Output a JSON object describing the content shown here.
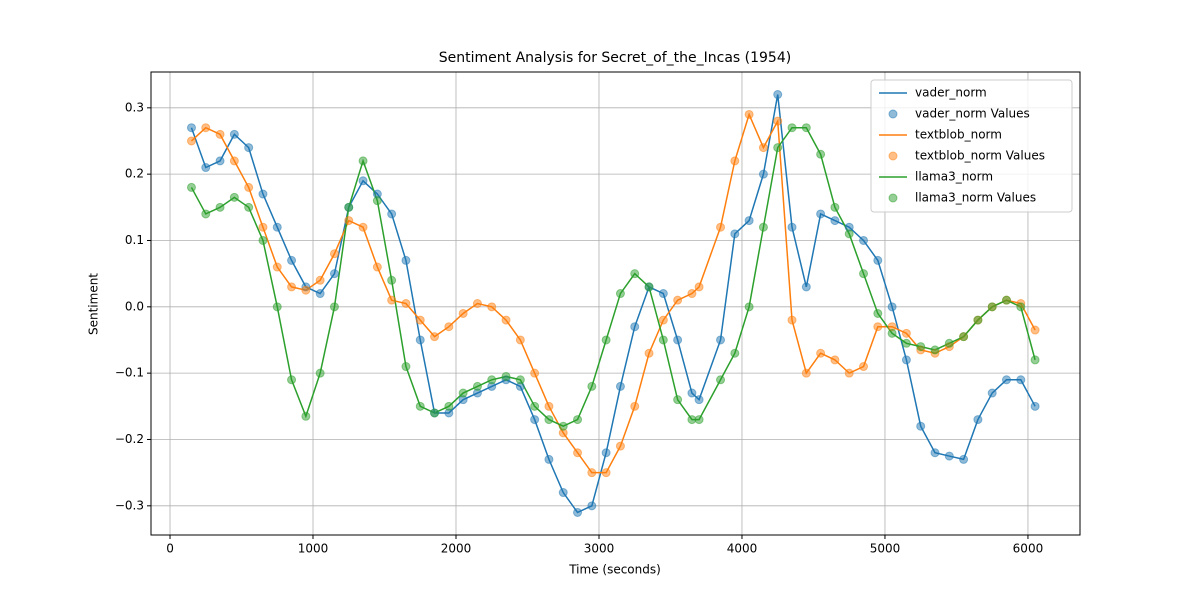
{
  "chart_data": {
    "type": "line",
    "title": "Sentiment Analysis for Secret_of_the_Incas (1954)",
    "x_label": "Time (seconds)",
    "y_label": "Sentiment",
    "xlim": [
      -133,
      6364
    ],
    "ylim": [
      -0.344,
      0.354
    ],
    "xticks": [
      0,
      1000,
      2000,
      3000,
      4000,
      5000,
      6000
    ],
    "yticks": [
      {
        "value": -0.3,
        "label": "−0.3"
      },
      {
        "value": -0.2,
        "label": "−0.2"
      },
      {
        "value": -0.1,
        "label": "−0.1"
      },
      {
        "value": 0,
        "label": "0.0"
      },
      0.1,
      0.2,
      0.3
    ],
    "grid": true,
    "legend": "upper right",
    "x": [
      150,
      250,
      350,
      450,
      550,
      650,
      750,
      850,
      950,
      1050,
      1150,
      1250,
      1350,
      1450,
      1550,
      1650,
      1750,
      1850,
      1950,
      2050,
      2150,
      2250,
      2350,
      2450,
      2550,
      2650,
      2750,
      2850,
      2950,
      3050,
      3150,
      3250,
      3350,
      3450,
      3550,
      3650,
      3700,
      3850,
      3950,
      4050,
      4150,
      4250,
      4350,
      4450,
      4550,
      4650,
      4750,
      4850,
      4950,
      5050,
      5150,
      5250,
      5350,
      5450,
      5550,
      5650,
      5750,
      5850,
      5950,
      6050
    ],
    "series": [
      {
        "name": "vader_norm",
        "points_name": "vader_norm Values",
        "color": "#1f77b4",
        "values": [
          0.27,
          0.21,
          0.22,
          0.26,
          0.24,
          0.17,
          0.12,
          0.07,
          0.03,
          0.02,
          0.05,
          0.15,
          0.19,
          0.17,
          0.14,
          0.07,
          -0.05,
          -0.16,
          -0.16,
          -0.14,
          -0.13,
          -0.12,
          -0.11,
          -0.12,
          -0.17,
          -0.23,
          -0.28,
          -0.31,
          -0.3,
          -0.22,
          -0.12,
          -0.03,
          0.03,
          0.02,
          -0.05,
          -0.13,
          -0.14,
          -0.05,
          0.11,
          0.13,
          0.2,
          0.32,
          0.12,
          0.03,
          0.14,
          0.13,
          0.12,
          0.1,
          0.07,
          0.0,
          -0.08,
          -0.18,
          -0.22,
          -0.225,
          -0.23,
          -0.17,
          -0.13,
          -0.11,
          -0.11,
          -0.15
        ]
      },
      {
        "name": "textblob_norm",
        "points_name": "textblob_norm Values",
        "color": "#ff7f0e",
        "values": [
          0.25,
          0.27,
          0.26,
          0.22,
          0.18,
          0.12,
          0.06,
          0.03,
          0.025,
          0.04,
          0.08,
          0.13,
          0.12,
          0.06,
          0.01,
          0.005,
          -0.02,
          -0.045,
          -0.03,
          -0.01,
          0.005,
          0.0,
          -0.02,
          -0.05,
          -0.1,
          -0.15,
          -0.19,
          -0.22,
          -0.25,
          -0.25,
          -0.21,
          -0.15,
          -0.07,
          -0.02,
          0.01,
          0.02,
          0.03,
          0.12,
          0.22,
          0.29,
          0.24,
          0.28,
          -0.02,
          -0.1,
          -0.07,
          -0.08,
          -0.1,
          -0.09,
          -0.03,
          -0.03,
          -0.04,
          -0.065,
          -0.07,
          -0.06,
          -0.045,
          -0.02,
          0.0,
          0.01,
          0.005,
          -0.035
        ]
      },
      {
        "name": "llama3_norm",
        "points_name": "llama3_norm Values",
        "color": "#2ca02c",
        "values": [
          0.18,
          0.14,
          0.15,
          0.165,
          0.15,
          0.1,
          0.0,
          -0.11,
          -0.165,
          -0.1,
          0.0,
          0.15,
          0.22,
          0.16,
          0.04,
          -0.09,
          -0.15,
          -0.16,
          -0.15,
          -0.13,
          -0.12,
          -0.11,
          -0.105,
          -0.11,
          -0.15,
          -0.17,
          -0.18,
          -0.17,
          -0.12,
          -0.05,
          0.02,
          0.05,
          0.03,
          -0.05,
          -0.14,
          -0.17,
          -0.17,
          -0.11,
          -0.07,
          0.0,
          0.12,
          0.24,
          0.27,
          0.27,
          0.23,
          0.15,
          0.11,
          0.05,
          -0.01,
          -0.04,
          -0.055,
          -0.06,
          -0.065,
          -0.055,
          -0.045,
          -0.02,
          0.0,
          0.01,
          0.0,
          -0.08
        ]
      }
    ]
  }
}
